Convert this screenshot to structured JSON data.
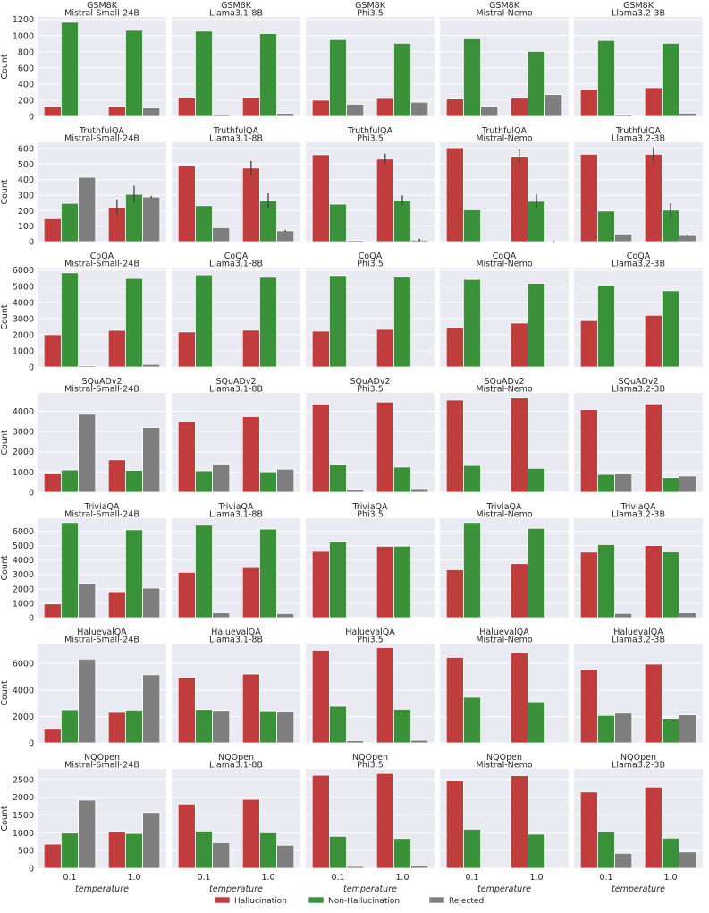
{
  "chart_data": {
    "type": "bar",
    "categories": [
      "0.1",
      "1.0"
    ],
    "xlabel": "temperature",
    "ylabel": "Count",
    "series_names": [
      "Hallucination",
      "Non-Hallucination",
      "Rejected"
    ],
    "colors": {
      "Hallucination": "#c03c3d",
      "Non-Hallucination": "#3a913a",
      "Rejected": "#7f7f7f",
      "panel_bg": "#eaeaf2",
      "grid": "#ffffff"
    },
    "legend": {
      "placement": "bottom-center",
      "entries": [
        "Hallucination",
        "Non-Hallucination",
        "Rejected"
      ]
    },
    "grid": true,
    "rows": [
      {
        "dataset": "GSM8K",
        "ylim": [
          0,
          1230
        ],
        "yticks": [
          0,
          200,
          400,
          600,
          800,
          1000,
          1200
        ],
        "panels": [
          {
            "model": "Mistral-Small-24B",
            "values": {
              "Hallucination": [
                125,
                125
              ],
              "Non-Hallucination": [
                1165,
                1065
              ],
              "Rejected": [
                10,
                105
              ]
            }
          },
          {
            "model": "Llama3.1-8B",
            "values": {
              "Hallucination": [
                228,
                235
              ],
              "Non-Hallucination": [
                1055,
                1025
              ],
              "Rejected": [
                15,
                38
              ]
            }
          },
          {
            "model": "Phi3.5",
            "values": {
              "Hallucination": [
                200,
                222
              ],
              "Non-Hallucination": [
                950,
                905
              ],
              "Rejected": [
                150,
                175
              ]
            }
          },
          {
            "model": "Mistral-Nemo",
            "values": {
              "Hallucination": [
                215,
                225
              ],
              "Non-Hallucination": [
                960,
                805
              ],
              "Rejected": [
                125,
                270
              ]
            }
          },
          {
            "model": "Llama3.2-3B",
            "values": {
              "Hallucination": [
                335,
                355
              ],
              "Non-Hallucination": [
                940,
                905
              ],
              "Rejected": [
                25,
                40
              ]
            }
          }
        ]
      },
      {
        "dataset": "TruthfulQA",
        "ylim": [
          0,
          640
        ],
        "yticks": [
          0,
          100,
          200,
          300,
          400,
          500,
          600
        ],
        "panels": [
          {
            "model": "Mistral-Small-24B",
            "values": {
              "Hallucination": [
                148,
                222
              ],
              "Non-Hallucination": [
                247,
                305
              ],
              "Rejected": [
                415,
                288
              ]
            },
            "err": {
              "Hallucination": [
                0,
                50
              ],
              "Non-Hallucination": [
                0,
                55
              ],
              "Rejected": [
                0,
                8
              ]
            }
          },
          {
            "model": "Llama3.1-8B",
            "values": {
              "Hallucination": [
                487,
                474
              ],
              "Non-Hallucination": [
                232,
                265
              ],
              "Rejected": [
                90,
                70
              ]
            },
            "err": {
              "Hallucination": [
                0,
                45
              ],
              "Non-Hallucination": [
                0,
                47
              ],
              "Rejected": [
                0,
                6
              ]
            }
          },
          {
            "model": "Phi3.5",
            "values": {
              "Hallucination": [
                560,
                532
              ],
              "Non-Hallucination": [
                242,
                268
              ],
              "Rejected": [
                8,
                10
              ]
            },
            "err": {
              "Hallucination": [
                0,
                35
              ],
              "Non-Hallucination": [
                0,
                30
              ],
              "Rejected": [
                0,
                8
              ]
            }
          },
          {
            "model": "Mistral-Nemo",
            "values": {
              "Hallucination": [
                605,
                550
              ],
              "Non-Hallucination": [
                205,
                260
              ],
              "Rejected": [
                0,
                2
              ]
            },
            "err": {
              "Hallucination": [
                0,
                45
              ],
              "Non-Hallucination": [
                0,
                45
              ],
              "Rejected": [
                0,
                3
              ]
            }
          },
          {
            "model": "Llama3.2-3B",
            "values": {
              "Hallucination": [
                563,
                563
              ],
              "Non-Hallucination": [
                197,
                203
              ],
              "Rejected": [
                50,
                40
              ]
            },
            "err": {
              "Hallucination": [
                0,
                45
              ],
              "Non-Hallucination": [
                0,
                45
              ],
              "Rejected": [
                0,
                8
              ]
            }
          }
        ]
      },
      {
        "dataset": "CoQA",
        "ylim": [
          0,
          6150
        ],
        "yticks": [
          0,
          1000,
          2000,
          3000,
          4000,
          5000,
          6000
        ],
        "panels": [
          {
            "model": "Mistral-Small-24B",
            "values": {
              "Hallucination": [
                2000,
                2270
              ],
              "Non-Hallucination": [
                5830,
                5480
              ],
              "Rejected": [
                80,
                160
              ]
            }
          },
          {
            "model": "Llama3.1-8B",
            "values": {
              "Hallucination": [
                2170,
                2280
              ],
              "Non-Hallucination": [
                5700,
                5550
              ],
              "Rejected": [
                20,
                50
              ]
            }
          },
          {
            "model": "Phi3.5",
            "values": {
              "Hallucination": [
                2220,
                2330
              ],
              "Non-Hallucination": [
                5660,
                5560
              ],
              "Rejected": [
                10,
                10
              ]
            }
          },
          {
            "model": "Mistral-Nemo",
            "values": {
              "Hallucination": [
                2460,
                2720
              ],
              "Non-Hallucination": [
                5420,
                5180
              ],
              "Rejected": [
                0,
                0
              ]
            }
          },
          {
            "model": "Llama3.2-3B",
            "values": {
              "Hallucination": [
                2870,
                3200
              ],
              "Non-Hallucination": [
                5030,
                4720
              ],
              "Rejected": [
                0,
                0
              ]
            }
          }
        ]
      },
      {
        "dataset": "SQuADv2",
        "ylim": [
          0,
          4900
        ],
        "yticks": [
          0,
          1000,
          2000,
          3000,
          4000
        ],
        "panels": [
          {
            "model": "Mistral-Small-24B",
            "values": {
              "Hallucination": [
                950,
                1600
              ],
              "Non-Hallucination": [
                1100,
                1080
              ],
              "Rejected": [
                3850,
                3200
              ]
            }
          },
          {
            "model": "Llama3.1-8B",
            "values": {
              "Hallucination": [
                3460,
                3730
              ],
              "Non-Hallucination": [
                1060,
                1010
              ],
              "Rejected": [
                1360,
                1140
              ]
            }
          },
          {
            "model": "Phi3.5",
            "values": {
              "Hallucination": [
                4350,
                4450
              ],
              "Non-Hallucination": [
                1380,
                1240
              ],
              "Rejected": [
                150,
                180
              ]
            }
          },
          {
            "model": "Mistral-Nemo",
            "values": {
              "Hallucination": [
                4550,
                4650
              ],
              "Non-Hallucination": [
                1320,
                1180
              ],
              "Rejected": [
                0,
                10
              ]
            }
          },
          {
            "model": "Llama3.2-3B",
            "values": {
              "Hallucination": [
                4080,
                4360
              ],
              "Non-Hallucination": [
                880,
                720
              ],
              "Rejected": [
                920,
                800
              ]
            }
          }
        ]
      },
      {
        "dataset": "TriviaQA",
        "ylim": [
          0,
          6900
        ],
        "yticks": [
          0,
          1000,
          2000,
          3000,
          4000,
          5000,
          6000
        ],
        "panels": [
          {
            "model": "Mistral-Small-24B",
            "values": {
              "Hallucination": [
                950,
                1800
              ],
              "Non-Hallucination": [
                6600,
                6100
              ],
              "Rejected": [
                2380,
                2050
              ]
            }
          },
          {
            "model": "Llama3.1-8B",
            "values": {
              "Hallucination": [
                3150,
                3470
              ],
              "Non-Hallucination": [
                6420,
                6150
              ],
              "Rejected": [
                340,
                290
              ]
            }
          },
          {
            "model": "Phi3.5",
            "values": {
              "Hallucination": [
                4600,
                4950
              ],
              "Non-Hallucination": [
                5280,
                4960
              ],
              "Rejected": [
                30,
                40
              ]
            }
          },
          {
            "model": "Mistral-Nemo",
            "values": {
              "Hallucination": [
                3330,
                3750
              ],
              "Non-Hallucination": [
                6600,
                6200
              ],
              "Rejected": [
                0,
                0
              ]
            }
          },
          {
            "model": "Llama3.2-3B",
            "values": {
              "Hallucination": [
                4550,
                5000
              ],
              "Non-Hallucination": [
                5070,
                4570
              ],
              "Rejected": [
                300,
                340
              ]
            }
          }
        ]
      },
      {
        "dataset": "HaluevalQA",
        "ylim": [
          0,
          7500
        ],
        "yticks": [
          0,
          2000,
          4000,
          6000
        ],
        "panels": [
          {
            "model": "Mistral-Small-24B",
            "values": {
              "Hallucination": [
                1100,
                2300
              ],
              "Non-Hallucination": [
                2500,
                2480
              ],
              "Rejected": [
                6330,
                5150
              ]
            }
          },
          {
            "model": "Llama3.1-8B",
            "values": {
              "Hallucination": [
                4950,
                5200
              ],
              "Non-Hallucination": [
                2520,
                2420
              ],
              "Rejected": [
                2450,
                2330
              ]
            }
          },
          {
            "model": "Phi3.5",
            "values": {
              "Hallucination": [
                7000,
                7200
              ],
              "Non-Hallucination": [
                2770,
                2540
              ],
              "Rejected": [
                170,
                200
              ]
            }
          },
          {
            "model": "Mistral-Nemo",
            "values": {
              "Hallucination": [
                6460,
                6800
              ],
              "Non-Hallucination": [
                3450,
                3100
              ],
              "Rejected": [
                0,
                0
              ]
            }
          },
          {
            "model": "Llama3.2-3B",
            "values": {
              "Hallucination": [
                5550,
                5950
              ],
              "Non-Hallucination": [
                2080,
                1850
              ],
              "Rejected": [
                2250,
                2120
              ]
            }
          }
        ]
      },
      {
        "dataset": "NQOpen",
        "ylim": [
          0,
          2800
        ],
        "yticks": [
          0,
          500,
          1000,
          1500,
          2000,
          2500
        ],
        "panels": [
          {
            "model": "Mistral-Small-24B",
            "values": {
              "Hallucination": [
                680,
                1030
              ],
              "Non-Hallucination": [
                990,
                980
              ],
              "Rejected": [
                1920,
                1570
              ]
            }
          },
          {
            "model": "Llama3.1-8B",
            "values": {
              "Hallucination": [
                1810,
                1940
              ],
              "Non-Hallucination": [
                1050,
                1000
              ],
              "Rejected": [
                720,
                650
              ]
            }
          },
          {
            "model": "Phi3.5",
            "values": {
              "Hallucination": [
                2620,
                2670
              ],
              "Non-Hallucination": [
                900,
                840
              ],
              "Rejected": [
                50,
                60
              ]
            }
          },
          {
            "model": "Mistral-Nemo",
            "values": {
              "Hallucination": [
                2480,
                2610
              ],
              "Non-Hallucination": [
                1100,
                960
              ],
              "Rejected": [
                0,
                0
              ]
            }
          },
          {
            "model": "Llama3.2-3B",
            "values": {
              "Hallucination": [
                2150,
                2290
              ],
              "Non-Hallucination": [
                1020,
                850
              ],
              "Rejected": [
                420,
                460
              ]
            }
          }
        ]
      }
    ]
  }
}
